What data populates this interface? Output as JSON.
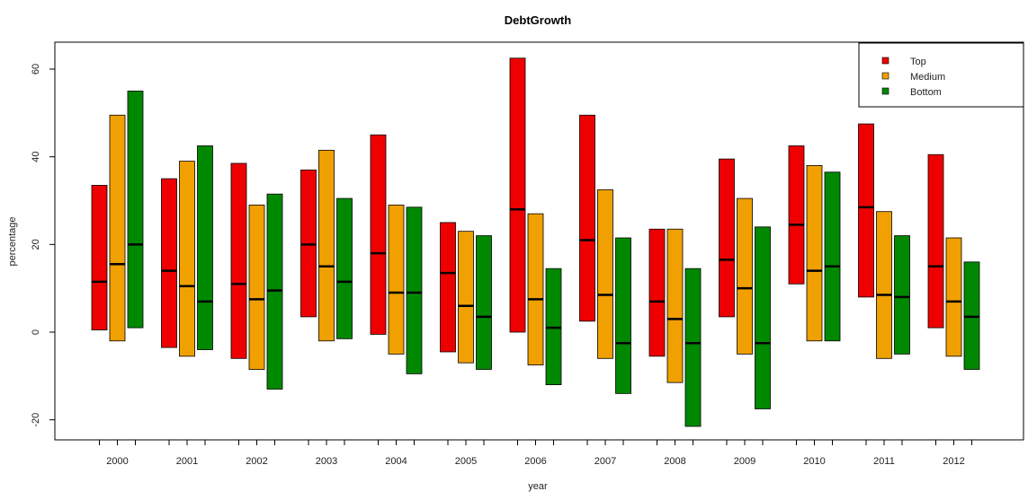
{
  "chart_data": {
    "type": "bar",
    "subtype": "floating-range-with-median",
    "title": "DebtGrowth",
    "xlabel": "year",
    "ylabel": "percentage",
    "ylim": [
      -25,
      66
    ],
    "yticks": [
      -20,
      0,
      20,
      40,
      60
    ],
    "grid": false,
    "legend_position": "top-right",
    "categories": [
      "2000",
      "2001",
      "2002",
      "2003",
      "2004",
      "2005",
      "2006",
      "2007",
      "2008",
      "2009",
      "2010",
      "2011",
      "2012"
    ],
    "series": [
      {
        "name": "Top",
        "color": "#ee0000",
        "low": [
          0.5,
          -3.5,
          -6,
          3.5,
          -0.5,
          -4.5,
          0,
          2.5,
          -5.5,
          3.5,
          11,
          8,
          1
        ],
        "median": [
          11.5,
          14,
          11,
          20,
          18,
          13.5,
          28,
          21,
          7,
          16.5,
          24.5,
          28.5,
          15
        ],
        "high": [
          33.5,
          35,
          38.5,
          37,
          45,
          25,
          62.5,
          49.5,
          23.5,
          39.5,
          42.5,
          47.5,
          40.5
        ]
      },
      {
        "name": "Medium",
        "color": "#f0a000",
        "low": [
          -2,
          -5.5,
          -8.5,
          -2,
          -5,
          -7,
          -7.5,
          -6,
          -11.5,
          -5,
          -2,
          -6,
          -5.5
        ],
        "median": [
          15.5,
          10.5,
          7.5,
          15,
          9,
          6,
          7.5,
          8.5,
          3,
          10,
          14,
          8.5,
          7
        ],
        "high": [
          49.5,
          39,
          29,
          41.5,
          29,
          23,
          27,
          32.5,
          23.5,
          30.5,
          38,
          27.5,
          21.5
        ]
      },
      {
        "name": "Bottom",
        "color": "#008800",
        "low": [
          1,
          -4,
          -13,
          -1.5,
          -9.5,
          -8.5,
          -12,
          -14,
          -21.5,
          -17.5,
          -2,
          -5,
          -8.5
        ],
        "median": [
          20,
          7,
          9.5,
          11.5,
          9,
          3.5,
          1,
          -2.5,
          -2.5,
          -2.5,
          15,
          8,
          3.5
        ],
        "high": [
          55,
          42.5,
          31.5,
          30.5,
          28.5,
          22,
          14.5,
          21.5,
          14.5,
          24,
          36.5,
          22,
          16
        ]
      }
    ]
  }
}
